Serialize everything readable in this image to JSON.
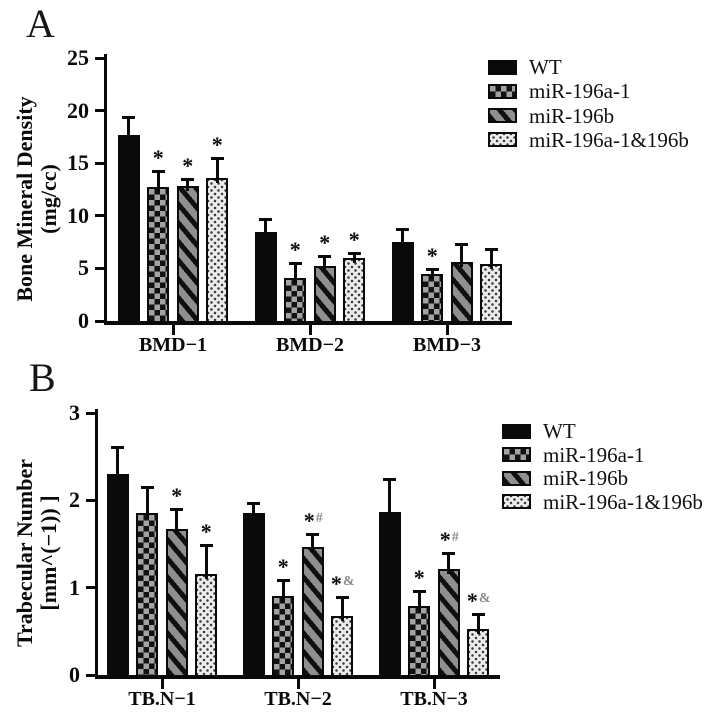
{
  "figure": {
    "background": "#ffffff",
    "colors": {
      "ink": "#0a0a0a",
      "checker_gray": "#a3a3a3",
      "stripe_gray": "#8f8f8f",
      "dots_background": "#ececec",
      "dots_ink": "#3c3c3c",
      "significance_secondary": "#8a8a8a"
    }
  },
  "panels": [
    {
      "letter": "A",
      "ylabel_line1": "Bone Mineral Density",
      "ylabel_line2": "(mg/cc)"
    },
    {
      "letter": "B",
      "ylabel_line1": "Trabecular Number",
      "ylabel_line2": "[mm^(−1)) ]"
    }
  ],
  "chart_data": [
    {
      "type": "bar",
      "panel": "A",
      "title": "",
      "xlabel": "",
      "ylabel": "Bone Mineral Density (mg/cc)",
      "categories": [
        "BMD−1",
        "BMD−2",
        "BMD−3"
      ],
      "ylim": [
        0,
        25
      ],
      "yticks": [
        0,
        5,
        10,
        15,
        20,
        25
      ],
      "grid": false,
      "legend_position": "top-right",
      "series": [
        {
          "name": "WT",
          "pattern": "solid",
          "values": [
            17.7,
            8.5,
            7.5
          ],
          "errors": [
            1.8,
            1.3,
            1.3
          ],
          "sig": [
            "",
            "",
            ""
          ]
        },
        {
          "name": "miR-196a-1",
          "pattern": "checker",
          "values": [
            12.7,
            4.1,
            4.5
          ],
          "errors": [
            1.7,
            1.5,
            0.5
          ],
          "sig": [
            "*",
            "*",
            "*"
          ]
        },
        {
          "name": "miR-196b",
          "pattern": "stripes",
          "values": [
            12.8,
            5.2,
            5.6
          ],
          "errors": [
            0.8,
            1.1,
            1.8
          ],
          "sig": [
            "*",
            "*",
            ""
          ]
        },
        {
          "name": "miR-196a-1&196b",
          "pattern": "dots",
          "values": [
            13.6,
            6.0,
            5.4
          ],
          "errors": [
            2.0,
            0.6,
            1.5
          ],
          "sig": [
            "*",
            "*",
            ""
          ]
        }
      ]
    },
    {
      "type": "bar",
      "panel": "B",
      "title": "",
      "xlabel": "",
      "ylabel": "Trabecular Number [mm^(−1)) ]",
      "categories": [
        "TB.N−1",
        "TB.N−2",
        "TB.N−3"
      ],
      "ylim": [
        0,
        3
      ],
      "yticks": [
        0,
        1,
        2,
        3
      ],
      "grid": false,
      "legend_position": "top-right",
      "series": [
        {
          "name": "WT",
          "pattern": "solid",
          "values": [
            2.3,
            1.85,
            1.87
          ],
          "errors": [
            0.32,
            0.13,
            0.39
          ],
          "sig": [
            "",
            "",
            ""
          ]
        },
        {
          "name": "miR-196a-1",
          "pattern": "checker",
          "values": [
            1.85,
            0.91,
            0.79
          ],
          "errors": [
            0.31,
            0.19,
            0.18
          ],
          "sig": [
            "",
            "*",
            "*"
          ]
        },
        {
          "name": "miR-196b",
          "pattern": "stripes",
          "values": [
            1.67,
            1.46,
            1.21
          ],
          "errors": [
            0.24,
            0.17,
            0.2
          ],
          "sig": [
            "*",
            "*#",
            "*#"
          ]
        },
        {
          "name": "miR-196a-1&196b",
          "pattern": "dots",
          "values": [
            1.16,
            0.68,
            0.53
          ],
          "errors": [
            0.34,
            0.23,
            0.18
          ],
          "sig": [
            "*",
            "*&",
            "*&"
          ]
        }
      ]
    }
  ]
}
